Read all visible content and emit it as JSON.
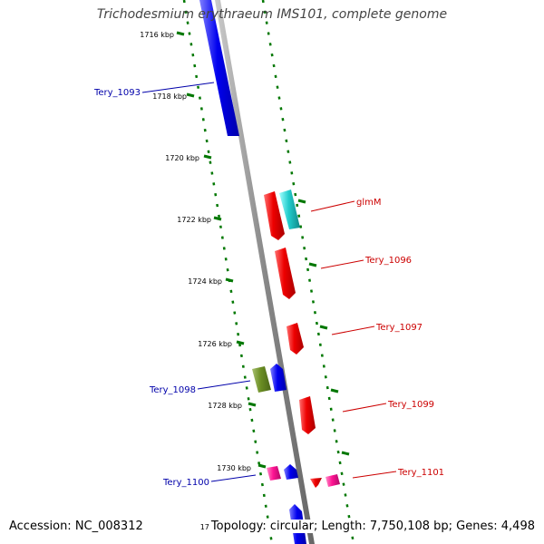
{
  "title": "Trichodesmium erythraeum IMS101, complete genome",
  "accession": "Accession: NC_008312",
  "topology": "Topology: circular; Length: 7,750,108 bp; Genes: 4,498",
  "clipped_tick": "17",
  "colors": {
    "forward_strand": "#0000ee",
    "reverse_strand": "#ee0000",
    "tick": "#007700",
    "backbone": "#888888",
    "cyan_gene": "#22cccc",
    "olive_gene": "#6b8e23",
    "pink_gene": "#ff1493"
  },
  "ticks": [
    {
      "label": "1716 kbp"
    },
    {
      "label": "1718 kbp"
    },
    {
      "label": "1720 kbp"
    },
    {
      "label": "1722 kbp"
    },
    {
      "label": "1724 kbp"
    },
    {
      "label": "1726 kbp"
    },
    {
      "label": "1728 kbp"
    },
    {
      "label": "1730 kbp"
    }
  ],
  "gene_labels": [
    {
      "name": "Tery_1093",
      "color": "#0000aa"
    },
    {
      "name": "glmM",
      "color": "#cc0000"
    },
    {
      "name": "Tery_1096",
      "color": "#cc0000"
    },
    {
      "name": "Tery_1097",
      "color": "#cc0000"
    },
    {
      "name": "Tery_1098",
      "color": "#0000aa"
    },
    {
      "name": "Tery_1099",
      "color": "#cc0000"
    },
    {
      "name": "Tery_1100",
      "color": "#0000aa"
    },
    {
      "name": "Tery_1101",
      "color": "#cc0000"
    }
  ]
}
